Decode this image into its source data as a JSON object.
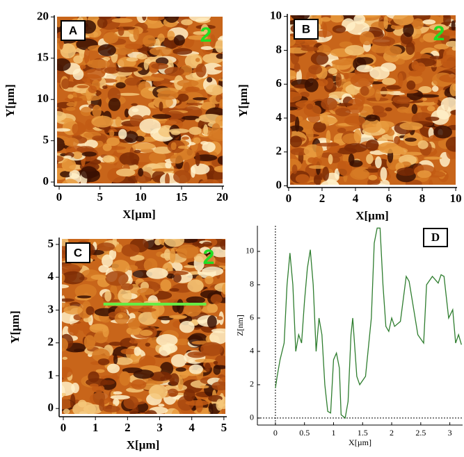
{
  "chart_data": [
    {
      "type": "image",
      "panel_label": "A",
      "annotation": "2",
      "xlabel": "X[µm]",
      "ylabel": "Y[µm]",
      "xlim": [
        -0.6,
        20.2
      ],
      "ylim": [
        -0.5,
        20.2
      ],
      "xticks": [
        0,
        5,
        10,
        15,
        20
      ],
      "yticks": [
        0,
        5,
        10,
        15,
        20
      ]
    },
    {
      "type": "image",
      "panel_label": "B",
      "annotation": "2",
      "xlabel": "X[µm]",
      "ylabel": "Y[µm]",
      "xlim": [
        -0.08,
        10.08
      ],
      "ylim": [
        -0.1,
        10.15
      ],
      "xticks": [
        0,
        2,
        4,
        6,
        8,
        10
      ],
      "yticks": [
        0,
        2,
        4,
        6,
        8,
        10
      ]
    },
    {
      "type": "image",
      "panel_label": "C",
      "annotation": "2",
      "xlabel": "X[µm]",
      "ylabel": "Y[µm]",
      "xlim": [
        -0.13,
        5.09
      ],
      "ylim": [
        -0.25,
        5.21
      ],
      "xticks": [
        0,
        1,
        2,
        3,
        4,
        5
      ],
      "yticks": [
        0,
        1,
        2,
        3,
        4,
        5
      ],
      "profile_line": {
        "x": [
          1.25,
          4.45
        ],
        "y": [
          3.18,
          3.18
        ],
        "color": "#66ee44"
      }
    },
    {
      "type": "line",
      "panel_label": "D",
      "xlabel": "X[µm]",
      "ylabel": "Z[nm]",
      "xlim": [
        -0.31,
        3.22
      ],
      "ylim": [
        -0.42,
        11.54
      ],
      "xticks": [
        0,
        0.5,
        1,
        1.5,
        2,
        2.5,
        3
      ],
      "yticks": [
        0,
        2,
        4,
        6,
        8,
        10
      ],
      "x": [
        0,
        0.03,
        0.08,
        0.15,
        0.2,
        0.25,
        0.3,
        0.35,
        0.4,
        0.45,
        0.5,
        0.55,
        0.6,
        0.65,
        0.7,
        0.75,
        0.8,
        0.85,
        0.9,
        0.95,
        1.0,
        1.05,
        1.1,
        1.13,
        1.2,
        1.25,
        1.3,
        1.33,
        1.4,
        1.45,
        1.55,
        1.65,
        1.7,
        1.75,
        1.8,
        1.85,
        1.9,
        1.95,
        2.0,
        2.05,
        2.15,
        2.25,
        2.3,
        2.38,
        2.45,
        2.55,
        2.6,
        2.7,
        2.8,
        2.85,
        2.9,
        2.98,
        3.05,
        3.1,
        3.15,
        3.2
      ],
      "series": [
        {
          "color": "#2e7d2e",
          "values": [
            1.8,
            2.5,
            3.5,
            4.5,
            8,
            9.9,
            8,
            4,
            5,
            4.5,
            7,
            9,
            10.1,
            8,
            4,
            6,
            5,
            2,
            0.4,
            0.3,
            3.5,
            3.9,
            3,
            0.2,
            0,
            1,
            5,
            6,
            2.5,
            2,
            2.5,
            6,
            10.5,
            11.4,
            11.4,
            8,
            5.5,
            5.2,
            6,
            5.5,
            5.8,
            8.5,
            8.2,
            6.5,
            5,
            4.5,
            8,
            8.5,
            8.1,
            8.6,
            8.5,
            6,
            6.5,
            4.5,
            5,
            4.4
          ]
        }
      ]
    }
  ]
}
